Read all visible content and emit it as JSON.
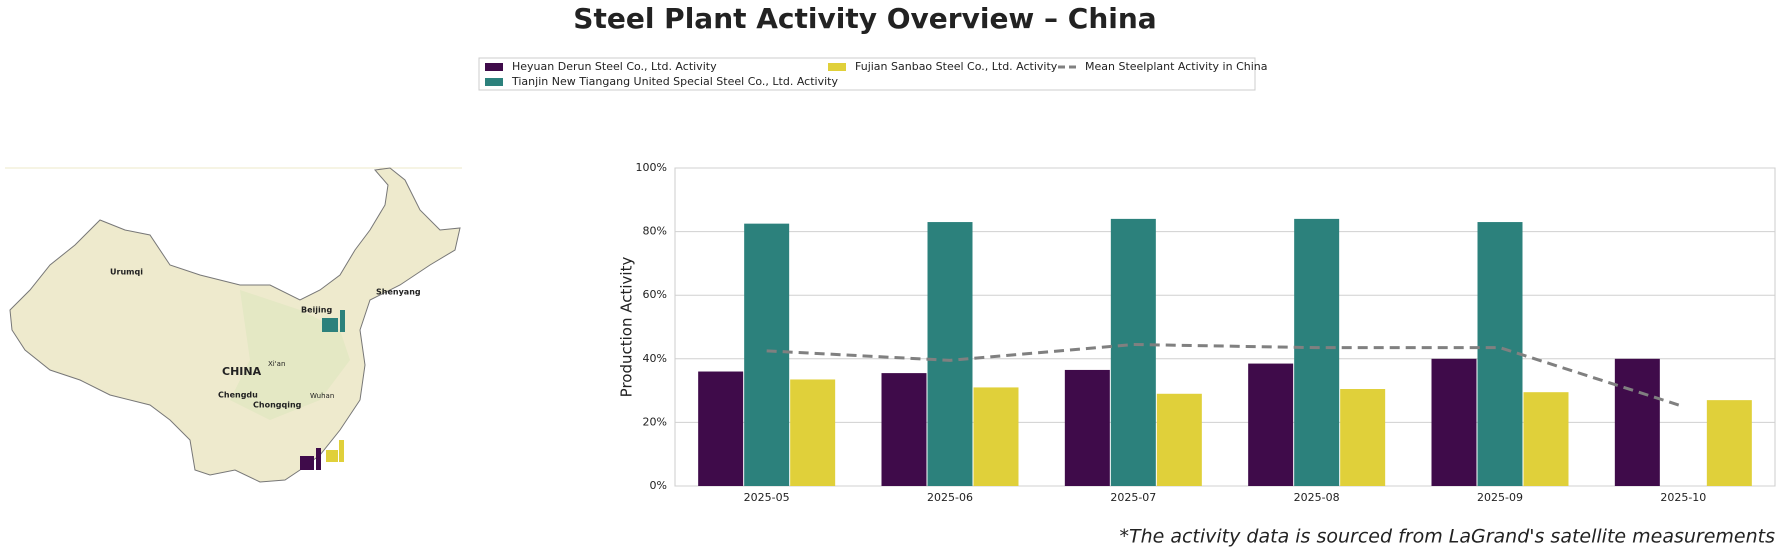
{
  "chart_data": {
    "type": "bar",
    "title": "Steel Plant Activity Overview – China",
    "y_label": "Production Activity",
    "categories": [
      "2025-05",
      "2025-06",
      "2025-07",
      "2025-08",
      "2025-09",
      "2025-10"
    ],
    "series": [
      {
        "name": "Heyuan Derun Steel Co., Ltd. Activity",
        "color": "#3f0b4a",
        "values": [
          36,
          35.5,
          36.5,
          38.5,
          40,
          40
        ]
      },
      {
        "name": "Tianjin New Tiangang United Special Steel Co., Ltd. Activity",
        "color": "#2c817c",
        "values": [
          82.5,
          83,
          84,
          84,
          83,
          null
        ]
      },
      {
        "name": "Fujian Sanbao Steel Co., Ltd. Activity",
        "color": "#e0d03a",
        "values": [
          33.5,
          31,
          29,
          30.5,
          29.5,
          27
        ]
      },
      {
        "name": "Mean Steelplant Activity in China",
        "color": "#808080",
        "type": "line",
        "linestyle": "dashed",
        "values": [
          42.5,
          39.5,
          44.5,
          43.5,
          43.5,
          25
        ]
      }
    ],
    "ylim": [
      0,
      100
    ],
    "yticks": [
      {
        "value": 0,
        "label": "0%"
      },
      {
        "value": 20,
        "label": "20%"
      },
      {
        "value": 40,
        "label": "40%"
      },
      {
        "value": 60,
        "label": "60%"
      },
      {
        "value": 80,
        "label": "80%"
      },
      {
        "value": 100,
        "label": "100%"
      }
    ],
    "grid": true
  },
  "map": {
    "labels": [
      "Urumqi",
      "Beijing",
      "Shenyang",
      "CHINA",
      "Xi'an",
      "Chengdu",
      "Chongqing",
      "Wuhan"
    ]
  },
  "footnote": "*The activity data is sourced from LaGrand's satellite measurements"
}
